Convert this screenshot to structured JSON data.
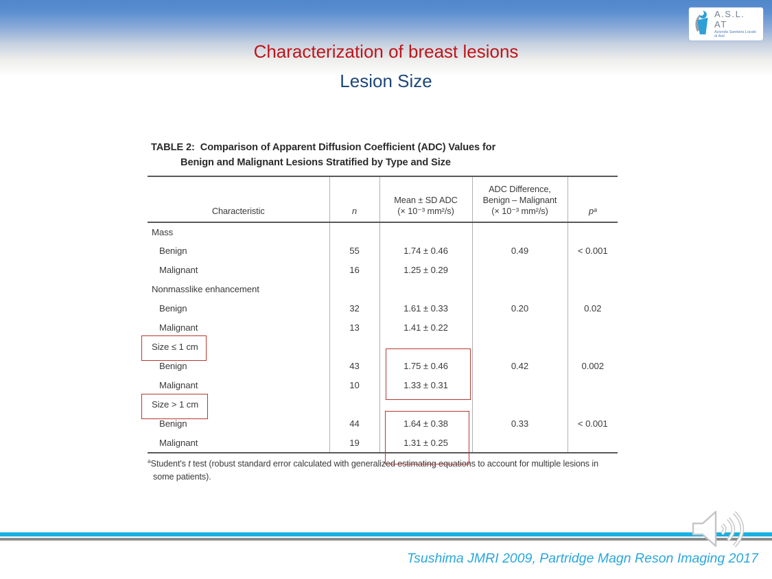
{
  "slide": {
    "title": "Characterization of breast lesions",
    "subtitle": "Lesion Size",
    "citation": "Tsushima JMRI 2009, Partridge Magn Reson Imaging 2017"
  },
  "logo": {
    "name": "A.S.L. AT",
    "sub1": "Azienda Sanitaria Locale",
    "sub2": "di Asti"
  },
  "icons": {
    "speaker": "speaker-with-sound-waves",
    "logo_mark": "stylized-figure-mark"
  },
  "colors": {
    "title_red": "#bf1519",
    "subtitle_blue": "#1d4679",
    "citation_blue": "#2aa6dd",
    "band_blue": "#5087cb",
    "bottom_cyan": "#18b0e1",
    "bottom_gray": "#8b8b8b",
    "highlight_red": "#b5372e",
    "table_text": "#3a3a3c"
  },
  "table": {
    "caption_label": "TABLE 2:",
    "caption_line1": "Comparison of Apparent Diffusion Coefficient (ADC) Values for",
    "caption_line2": "Benign and Malignant Lesions Stratified by Type and Size",
    "columns": [
      {
        "lines": [
          "Characteristic"
        ],
        "italic": false
      },
      {
        "lines": [
          "n"
        ],
        "italic": true
      },
      {
        "lines": [
          "Mean ± SD ADC",
          "(× 10⁻³ mm²/s)"
        ],
        "italic": false
      },
      {
        "lines": [
          "ADC Difference,",
          "Benign – Malignant",
          "(× 10⁻³ mm²/s)"
        ],
        "italic": false
      },
      {
        "lines": [
          "pᵃ"
        ],
        "italic": true
      }
    ],
    "rows": [
      {
        "label": "Mass",
        "group": true,
        "n": "",
        "adc": "",
        "diff": "",
        "p": ""
      },
      {
        "label": "Benign",
        "group": false,
        "n": "55",
        "adc": "1.74 ± 0.46",
        "diff": "0.49",
        "p": "< 0.001"
      },
      {
        "label": "Malignant",
        "group": false,
        "n": "16",
        "adc": "1.25 ± 0.29",
        "diff": "",
        "p": ""
      },
      {
        "label": "Nonmasslike enhancement",
        "group": true,
        "n": "",
        "adc": "",
        "diff": "",
        "p": ""
      },
      {
        "label": "Benign",
        "group": false,
        "n": "32",
        "adc": "1.61 ± 0.33",
        "diff": "0.20",
        "p": "0.02"
      },
      {
        "label": "Malignant",
        "group": false,
        "n": "13",
        "adc": "1.41 ± 0.22",
        "diff": "",
        "p": ""
      },
      {
        "label": "Size ≤ 1 cm",
        "group": true,
        "n": "",
        "adc": "",
        "diff": "",
        "p": ""
      },
      {
        "label": "Benign",
        "group": false,
        "n": "43",
        "adc": "1.75 ± 0.46",
        "diff": "0.42",
        "p": "0.002"
      },
      {
        "label": "Malignant",
        "group": false,
        "n": "10",
        "adc": "1.33 ± 0.31",
        "diff": "",
        "p": ""
      },
      {
        "label": "Size > 1 cm",
        "group": true,
        "n": "",
        "adc": "",
        "diff": "",
        "p": ""
      },
      {
        "label": "Benign",
        "group": false,
        "n": "44",
        "adc": "1.64 ± 0.38",
        "diff": "0.33",
        "p": "< 0.001"
      },
      {
        "label": "Malignant",
        "group": false,
        "n": "19",
        "adc": "1.31 ± 0.25",
        "diff": "",
        "p": ""
      }
    ],
    "footnote": {
      "sup": "a",
      "pre": "Student's ",
      "italic_t": "t",
      "rest": " test (robust standard error calculated with generalized estimating equations to account for multiple lesions in some patients)."
    }
  }
}
